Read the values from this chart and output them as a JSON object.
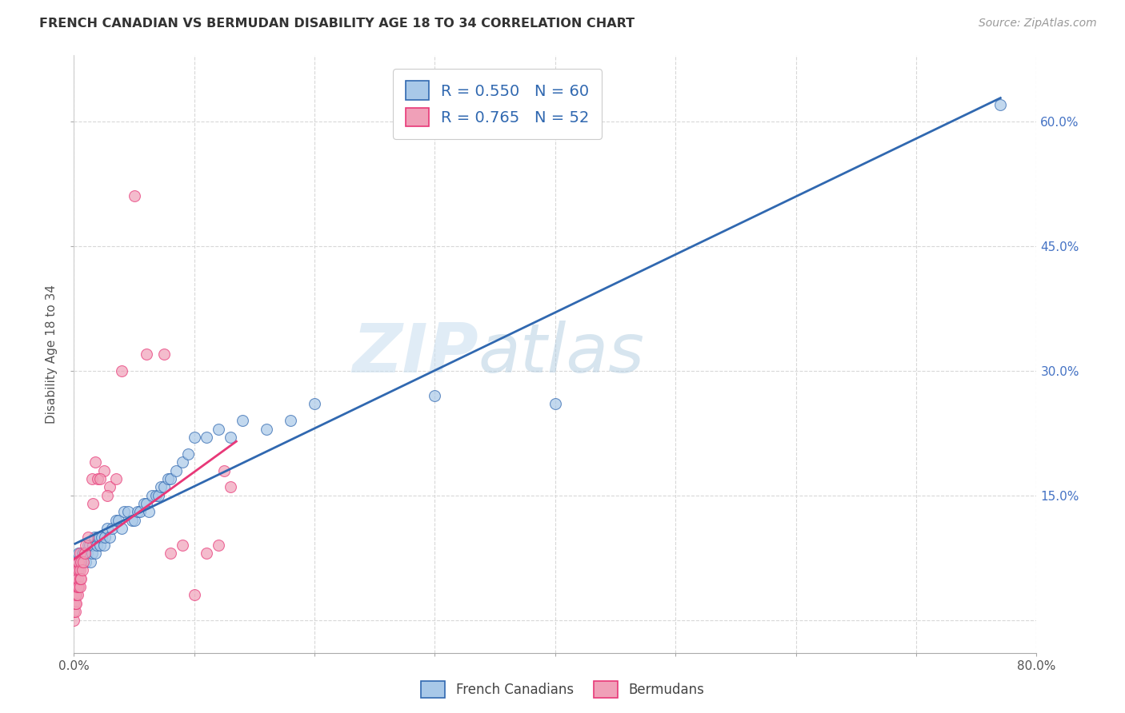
{
  "title": "FRENCH CANADIAN VS BERMUDAN DISABILITY AGE 18 TO 34 CORRELATION CHART",
  "source": "Source: ZipAtlas.com",
  "ylabel": "Disability Age 18 to 34",
  "watermark_zip": "ZIP",
  "watermark_atlas": "atlas",
  "xlim": [
    0.0,
    0.8
  ],
  "ylim": [
    -0.04,
    0.68
  ],
  "xticks": [
    0.0,
    0.1,
    0.2,
    0.3,
    0.4,
    0.5,
    0.6,
    0.7,
    0.8
  ],
  "yticks": [
    0.0,
    0.15,
    0.3,
    0.45,
    0.6
  ],
  "ytick_labels_right": [
    "",
    "15.0%",
    "30.0%",
    "45.0%",
    "60.0%"
  ],
  "xtick_labels": [
    "0.0%",
    "",
    "",
    "",
    "",
    "",
    "",
    "",
    "80.0%"
  ],
  "blue_scatter_color": "#a8c8e8",
  "blue_line_color": "#3068b0",
  "pink_scatter_color": "#f0a0b8",
  "pink_line_color": "#e83878",
  "background_color": "#ffffff",
  "grid_color": "#d8d8d8",
  "french_canadians_x": [
    0.001,
    0.002,
    0.003,
    0.004,
    0.005,
    0.006,
    0.007,
    0.008,
    0.01,
    0.011,
    0.012,
    0.013,
    0.014,
    0.015,
    0.016,
    0.017,
    0.018,
    0.019,
    0.02,
    0.021,
    0.022,
    0.023,
    0.025,
    0.026,
    0.028,
    0.03,
    0.032,
    0.035,
    0.037,
    0.04,
    0.042,
    0.045,
    0.048,
    0.05,
    0.053,
    0.055,
    0.058,
    0.06,
    0.062,
    0.065,
    0.068,
    0.07,
    0.072,
    0.075,
    0.078,
    0.08,
    0.085,
    0.09,
    0.095,
    0.1,
    0.11,
    0.12,
    0.13,
    0.14,
    0.16,
    0.18,
    0.2,
    0.3,
    0.4,
    0.77
  ],
  "french_canadians_y": [
    0.06,
    0.07,
    0.06,
    0.08,
    0.07,
    0.07,
    0.08,
    0.08,
    0.07,
    0.08,
    0.09,
    0.09,
    0.07,
    0.08,
    0.09,
    0.1,
    0.08,
    0.09,
    0.1,
    0.1,
    0.09,
    0.1,
    0.09,
    0.1,
    0.11,
    0.1,
    0.11,
    0.12,
    0.12,
    0.11,
    0.13,
    0.13,
    0.12,
    0.12,
    0.13,
    0.13,
    0.14,
    0.14,
    0.13,
    0.15,
    0.15,
    0.15,
    0.16,
    0.16,
    0.17,
    0.17,
    0.18,
    0.19,
    0.2,
    0.22,
    0.22,
    0.23,
    0.22,
    0.24,
    0.23,
    0.24,
    0.26,
    0.27,
    0.26,
    0.62
  ],
  "bermudans_x": [
    0.0,
    0.0,
    0.0,
    0.0,
    0.0,
    0.001,
    0.001,
    0.001,
    0.001,
    0.001,
    0.002,
    0.002,
    0.002,
    0.002,
    0.003,
    0.003,
    0.003,
    0.003,
    0.004,
    0.004,
    0.004,
    0.005,
    0.005,
    0.005,
    0.005,
    0.006,
    0.006,
    0.007,
    0.008,
    0.009,
    0.01,
    0.012,
    0.015,
    0.018,
    0.02,
    0.025,
    0.03,
    0.04,
    0.05,
    0.06,
    0.08,
    0.09,
    0.1,
    0.11,
    0.12,
    0.125,
    0.13,
    0.028,
    0.022,
    0.016,
    0.035,
    0.075
  ],
  "bermudans_y": [
    0.0,
    0.01,
    0.02,
    0.03,
    0.04,
    0.01,
    0.02,
    0.03,
    0.04,
    0.05,
    0.02,
    0.03,
    0.04,
    0.06,
    0.03,
    0.04,
    0.05,
    0.07,
    0.04,
    0.06,
    0.07,
    0.04,
    0.05,
    0.06,
    0.08,
    0.05,
    0.07,
    0.06,
    0.07,
    0.08,
    0.09,
    0.1,
    0.17,
    0.19,
    0.17,
    0.18,
    0.16,
    0.3,
    0.51,
    0.32,
    0.08,
    0.09,
    0.03,
    0.08,
    0.09,
    0.18,
    0.16,
    0.15,
    0.17,
    0.14,
    0.17,
    0.32
  ]
}
